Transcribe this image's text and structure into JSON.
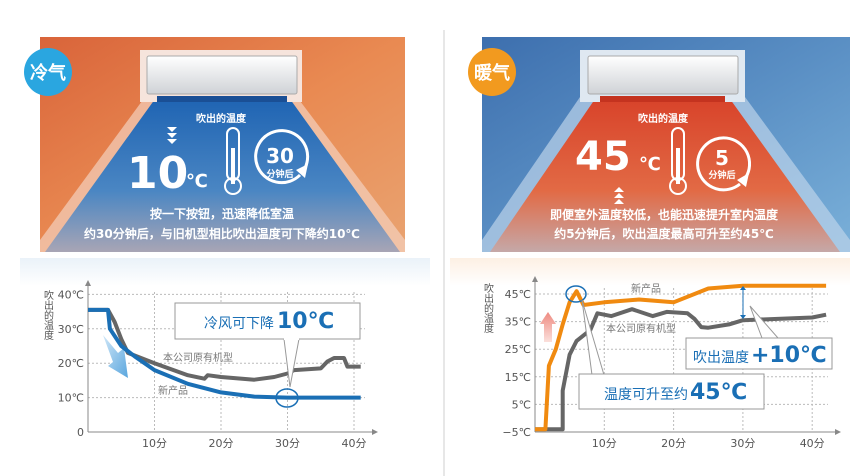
{
  "cooling": {
    "badge": "冷气",
    "outlet_label": "吹出的温度",
    "temp_value": "10",
    "temp_unit": "℃",
    "timer_value": "30",
    "timer_label": "分钟后",
    "caption_line1": "按一下按钮，迅速降低室温",
    "caption_line2": "约30分钟后，与旧机型相比吹出温度可下降约10℃",
    "accent": "#2aa6e0"
  },
  "heating": {
    "badge": "暖气",
    "outlet_label": "吹出的温度",
    "temp_value": "45",
    "temp_unit": "℃",
    "timer_value": "5",
    "timer_label": "分钟后",
    "caption_line1": "即便室外温度较低，也能迅速提升室内温度",
    "caption_line2": "约5分钟后，吹出温度最高可升至约45℃",
    "accent": "#f29a1f"
  },
  "chart_data": [
    {
      "type": "line",
      "title": "",
      "ylabel": "吹出的温度",
      "xlabel": "",
      "ylim": [
        0,
        40
      ],
      "xlim": [
        0,
        42
      ],
      "yticks": [
        0,
        10,
        20,
        30,
        40
      ],
      "ytick_labels": [
        "0",
        "10℃",
        "20℃",
        "30℃",
        "40℃"
      ],
      "xticks": [
        10,
        20,
        30,
        40
      ],
      "xtick_labels": [
        "10分",
        "20分",
        "30分",
        "40分"
      ],
      "grid": true,
      "annotation": {
        "text": "冷风可下降",
        "value": "10℃"
      },
      "series": [
        {
          "name": "新产品",
          "color": "#1a6fb5",
          "x": [
            0,
            3,
            3.3,
            5,
            7,
            10,
            15,
            20,
            25,
            30,
            41
          ],
          "y": [
            35.5,
            35.5,
            30,
            25,
            22,
            18,
            14,
            11.5,
            10.3,
            10,
            10
          ]
        },
        {
          "name": "本公司原有机型",
          "color": "#666666",
          "x": [
            0,
            3,
            4,
            5,
            6,
            10,
            15,
            17.5,
            18,
            20,
            25,
            28,
            30,
            31,
            35,
            36,
            37,
            38.5,
            39,
            41
          ],
          "y": [
            35.5,
            35.5,
            32,
            27,
            23,
            20,
            16.5,
            15.5,
            16.5,
            16,
            15.2,
            16,
            17,
            18,
            18.5,
            20.5,
            21.5,
            21.5,
            19,
            19
          ]
        }
      ]
    },
    {
      "type": "line",
      "title": "",
      "ylabel": "吹出的温度",
      "xlabel": "",
      "ylim": [
        -5,
        45
      ],
      "xlim": [
        0,
        43
      ],
      "yticks": [
        -5,
        5,
        15,
        25,
        35,
        45
      ],
      "ytick_labels": [
        "−5℃",
        "5℃",
        "15℃",
        "25℃",
        "35℃",
        "45℃"
      ],
      "xticks": [
        10,
        20,
        30,
        40
      ],
      "xtick_labels": [
        "10分",
        "20分",
        "30分",
        "40分"
      ],
      "grid": true,
      "annotations": [
        {
          "text": "温度可升至约",
          "value": "45℃"
        },
        {
          "text": "吹出温度",
          "value": "+10℃"
        }
      ],
      "series": [
        {
          "name": "新产品",
          "color": "#f08a10",
          "x": [
            0,
            1.5,
            2,
            3,
            4,
            5,
            6,
            7,
            10,
            15,
            20,
            25,
            30,
            42
          ],
          "y": [
            -4,
            -4,
            19,
            25,
            34,
            42,
            46,
            41,
            42,
            43,
            42,
            47,
            48,
            48
          ]
        },
        {
          "name": "本公司原有机型",
          "color": "#666666",
          "x": [
            0,
            4,
            4,
            5,
            6,
            8,
            9,
            11,
            14,
            17,
            19,
            22,
            23,
            24,
            25,
            28,
            30,
            40,
            42
          ],
          "y": [
            -4,
            -4,
            10,
            23,
            28,
            32,
            38,
            37,
            39.5,
            37,
            38.5,
            38,
            36,
            33,
            32.8,
            34,
            35.5,
            36.5,
            37.5
          ]
        }
      ]
    }
  ]
}
